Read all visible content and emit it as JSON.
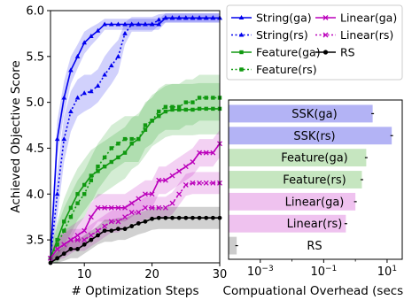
{
  "chart_data": [
    {
      "type": "line",
      "xlabel": "# Optimization Steps",
      "ylabel": "Achieved Objective Score",
      "xlim": [
        5,
        30
      ],
      "ylim": [
        3.25,
        6.0
      ],
      "xticks": [
        "10",
        "20",
        "30"
      ],
      "yticks": [
        "3.5",
        "4.0",
        "4.5",
        "5.0",
        "5.5",
        "6.0"
      ],
      "legend_location": "top-right",
      "series": [
        {
          "name": "String(ga)",
          "color": "#0000ee",
          "style": "solid",
          "marker": "triangle",
          "x": [
            5,
            6,
            7,
            8,
            9,
            10,
            11,
            12,
            13,
            14,
            15,
            16,
            17,
            18,
            19,
            20,
            21,
            22,
            23,
            24,
            25,
            26,
            27,
            28,
            29,
            30
          ],
          "y": [
            3.3,
            4.6,
            5.05,
            5.35,
            5.5,
            5.65,
            5.72,
            5.78,
            5.85,
            5.85,
            5.85,
            5.85,
            5.85,
            5.85,
            5.85,
            5.85,
            5.85,
            5.92,
            5.92,
            5.92,
            5.92,
            5.92,
            5.92,
            5.92,
            5.92,
            5.92
          ],
          "band": [
            0.12,
            0.2,
            0.18,
            0.15,
            0.13,
            0.12,
            0.1,
            0.08,
            0.06,
            0.06,
            0.06,
            0.06,
            0.06,
            0.06,
            0.06,
            0.06,
            0.06,
            0.05,
            0.05,
            0.05,
            0.05,
            0.05,
            0.05,
            0.05,
            0.05,
            0.05
          ]
        },
        {
          "name": "String(rs)",
          "color": "#0000ee",
          "style": "dotted",
          "marker": "triangle",
          "x": [
            5,
            6,
            7,
            8,
            9,
            10,
            11,
            12,
            13,
            14,
            15,
            16,
            17,
            18,
            19,
            20,
            21,
            22,
            23,
            24,
            25,
            26,
            27,
            28,
            29,
            30
          ],
          "y": [
            3.3,
            4.0,
            4.6,
            4.9,
            5.05,
            5.1,
            5.12,
            5.18,
            5.3,
            5.4,
            5.5,
            5.75,
            5.85,
            5.85,
            5.85,
            5.85,
            5.9,
            5.92,
            5.92,
            5.92,
            5.92,
            5.92,
            5.92,
            5.92,
            5.92,
            5.92
          ],
          "band": [
            0.1,
            0.25,
            0.25,
            0.22,
            0.2,
            0.2,
            0.18,
            0.18,
            0.2,
            0.2,
            0.18,
            0.12,
            0.08,
            0.08,
            0.08,
            0.08,
            0.06,
            0.05,
            0.05,
            0.05,
            0.05,
            0.05,
            0.05,
            0.05,
            0.05,
            0.05
          ]
        },
        {
          "name": "Feature(ga)",
          "color": "#119911",
          "style": "solid",
          "marker": "square",
          "x": [
            5,
            6,
            7,
            8,
            9,
            10,
            11,
            12,
            13,
            14,
            15,
            16,
            17,
            18,
            19,
            20,
            21,
            22,
            23,
            24,
            25,
            26,
            27,
            28,
            29,
            30
          ],
          "y": [
            3.3,
            3.5,
            3.7,
            3.85,
            4.0,
            4.1,
            4.2,
            4.25,
            4.3,
            4.35,
            4.4,
            4.45,
            4.55,
            4.6,
            4.7,
            4.8,
            4.85,
            4.9,
            4.92,
            4.92,
            4.92,
            4.92,
            4.93,
            4.93,
            4.93,
            4.93
          ],
          "band": [
            0.1,
            0.2,
            0.25,
            0.28,
            0.28,
            0.28,
            0.28,
            0.28,
            0.28,
            0.28,
            0.28,
            0.28,
            0.28,
            0.28,
            0.28,
            0.28,
            0.28,
            0.28,
            0.28,
            0.28,
            0.28,
            0.28,
            0.28,
            0.28,
            0.28,
            0.28
          ]
        },
        {
          "name": "Feature(rs)",
          "color": "#119911",
          "style": "dotted",
          "marker": "square",
          "x": [
            5,
            6,
            7,
            8,
            9,
            10,
            11,
            12,
            13,
            14,
            15,
            16,
            17,
            18,
            19,
            20,
            21,
            22,
            23,
            24,
            25,
            26,
            27,
            28,
            29,
            30
          ],
          "y": [
            3.3,
            3.45,
            3.6,
            3.75,
            3.9,
            4.0,
            4.15,
            4.3,
            4.4,
            4.5,
            4.55,
            4.6,
            4.6,
            4.6,
            4.75,
            4.8,
            4.9,
            4.95,
            4.95,
            4.95,
            5.0,
            5.0,
            5.05,
            5.05,
            5.05,
            5.05
          ],
          "band": [
            0.1,
            0.2,
            0.25,
            0.25,
            0.25,
            0.25,
            0.25,
            0.25,
            0.25,
            0.25,
            0.25,
            0.25,
            0.25,
            0.25,
            0.25,
            0.25,
            0.25,
            0.25,
            0.25,
            0.25,
            0.25,
            0.25,
            0.25,
            0.25,
            0.25,
            0.25
          ]
        },
        {
          "name": "Linear(ga)",
          "color": "#bb00bb",
          "style": "solid",
          "marker": "x",
          "x": [
            5,
            6,
            7,
            8,
            9,
            10,
            11,
            12,
            13,
            14,
            15,
            16,
            17,
            18,
            19,
            20,
            21,
            22,
            23,
            24,
            25,
            26,
            27,
            28,
            29,
            30
          ],
          "y": [
            3.3,
            3.4,
            3.45,
            3.5,
            3.55,
            3.6,
            3.75,
            3.85,
            3.85,
            3.85,
            3.85,
            3.85,
            3.9,
            3.95,
            4.0,
            4.0,
            4.15,
            4.15,
            4.2,
            4.25,
            4.3,
            4.35,
            4.45,
            4.45,
            4.45,
            4.55
          ],
          "band": [
            0.1,
            0.12,
            0.15,
            0.15,
            0.15,
            0.15,
            0.15,
            0.15,
            0.15,
            0.15,
            0.15,
            0.15,
            0.15,
            0.15,
            0.15,
            0.15,
            0.15,
            0.15,
            0.15,
            0.15,
            0.15,
            0.15,
            0.15,
            0.15,
            0.15,
            0.15
          ]
        },
        {
          "name": "Linear(rs)",
          "color": "#bb00bb",
          "style": "dotted",
          "marker": "x",
          "x": [
            5,
            6,
            7,
            8,
            9,
            10,
            11,
            12,
            13,
            14,
            15,
            16,
            17,
            18,
            19,
            20,
            21,
            22,
            23,
            24,
            25,
            26,
            27,
            28,
            29,
            30
          ],
          "y": [
            3.3,
            3.4,
            3.45,
            3.5,
            3.5,
            3.5,
            3.55,
            3.6,
            3.65,
            3.7,
            3.7,
            3.75,
            3.8,
            3.8,
            3.85,
            3.85,
            3.85,
            3.85,
            3.9,
            4.0,
            4.1,
            4.12,
            4.12,
            4.12,
            4.12,
            4.12
          ],
          "band": [
            0.08,
            0.1,
            0.12,
            0.12,
            0.12,
            0.12,
            0.12,
            0.12,
            0.12,
            0.12,
            0.12,
            0.12,
            0.12,
            0.12,
            0.12,
            0.12,
            0.12,
            0.12,
            0.12,
            0.12,
            0.12,
            0.12,
            0.12,
            0.12,
            0.12,
            0.12
          ]
        },
        {
          "name": "RS",
          "color": "#000000",
          "style": "solid",
          "marker": "circle",
          "x": [
            5,
            6,
            7,
            8,
            9,
            10,
            11,
            12,
            13,
            14,
            15,
            16,
            17,
            18,
            19,
            20,
            21,
            22,
            23,
            24,
            25,
            26,
            27,
            28,
            29,
            30
          ],
          "y": [
            3.25,
            3.3,
            3.35,
            3.4,
            3.4,
            3.45,
            3.5,
            3.55,
            3.6,
            3.6,
            3.62,
            3.62,
            3.65,
            3.68,
            3.7,
            3.73,
            3.74,
            3.74,
            3.74,
            3.74,
            3.74,
            3.74,
            3.74,
            3.74,
            3.74,
            3.74
          ],
          "band": [
            0.05,
            0.07,
            0.08,
            0.1,
            0.1,
            0.1,
            0.1,
            0.1,
            0.12,
            0.12,
            0.12,
            0.12,
            0.12,
            0.12,
            0.12,
            0.12,
            0.12,
            0.12,
            0.12,
            0.12,
            0.12,
            0.12,
            0.12,
            0.12,
            0.12,
            0.12
          ]
        }
      ]
    },
    {
      "type": "bar",
      "orientation": "horizontal",
      "xscale": "log",
      "xlabel": "Compuational Overhead (secs)",
      "xlim": [
        0.0001,
        30
      ],
      "xticks": [
        "10^-3",
        "10^-1",
        "10^1"
      ],
      "categories": [
        "SSK(ga)",
        "SSK(rs)",
        "Feature(ga)",
        "Feature(rs)",
        "Linear(ga)",
        "Linear(rs)",
        "RS"
      ],
      "values": [
        3.5,
        14,
        2.2,
        1.6,
        1.0,
        0.5,
        0.00018
      ],
      "colors": [
        "#b3b3f5",
        "#b3b3f5",
        "#c6e6c0",
        "#c6e6c0",
        "#efc2ef",
        "#efc2ef",
        "#cccccc"
      ]
    }
  ]
}
